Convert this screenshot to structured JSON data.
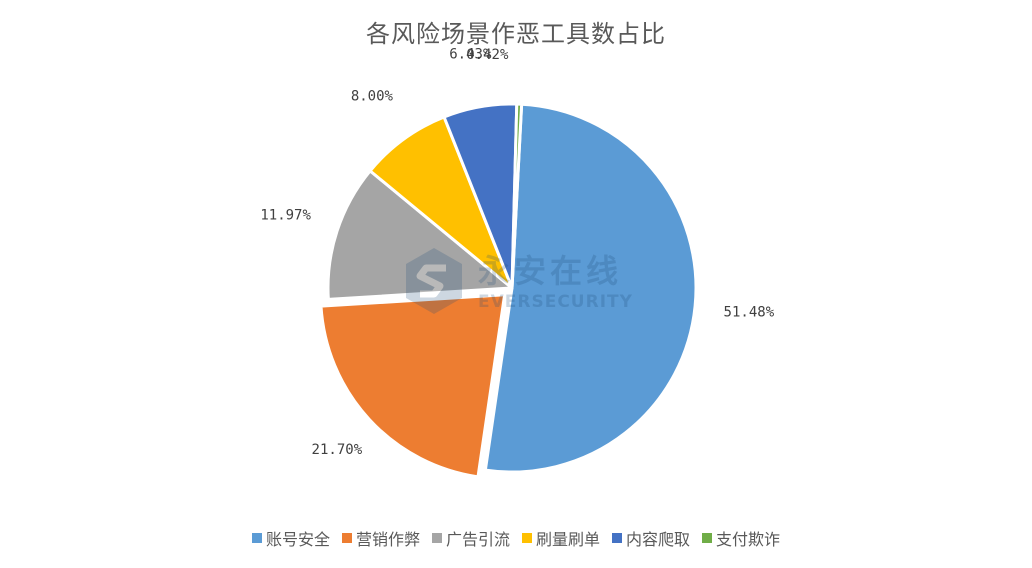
{
  "chart_data": {
    "type": "pie",
    "title": "各风险场景作恶工具数占比",
    "start_angle_deg": 3,
    "direction": "clockwise",
    "legend_position": "bottom",
    "slices": [
      {
        "name": "账号安全",
        "value": 51.48,
        "label": "51.48%",
        "color": "#5b9bd5"
      },
      {
        "name": "营销作弊",
        "value": 21.7,
        "label": "21.70%",
        "color": "#ed7d31"
      },
      {
        "name": "广告引流",
        "value": 11.97,
        "label": "11.97%",
        "color": "#a5a5a5"
      },
      {
        "name": "刷量刷单",
        "value": 8.0,
        "label": "8.00%",
        "color": "#ffc000"
      },
      {
        "name": "内容爬取",
        "value": 6.43,
        "label": "6.43%",
        "color": "#4472c4"
      },
      {
        "name": "支付欺诈",
        "value": 0.42,
        "label": "0.42%",
        "color": "#70ad47"
      }
    ],
    "exploded_slice": "营销作弊"
  },
  "watermark": {
    "title": "永安在线",
    "subtitle": "EVERSECURITY",
    "icon": "shield-s-logo-icon"
  }
}
